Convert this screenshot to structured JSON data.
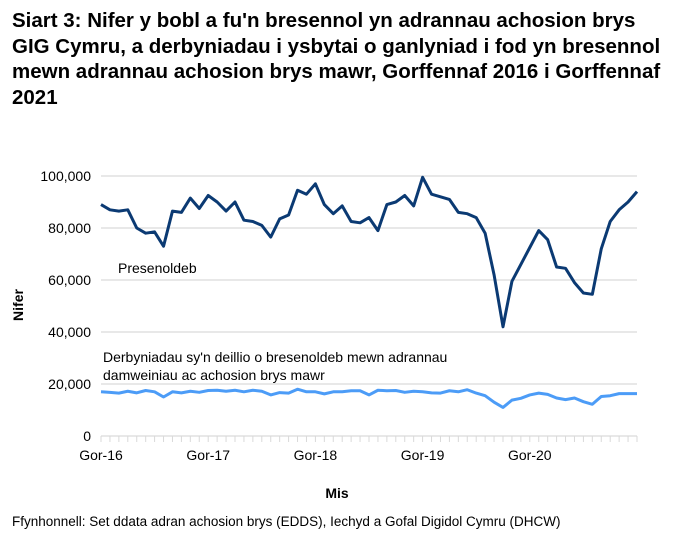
{
  "chart_data": {
    "type": "line",
    "title": "Siart 3: Nifer y bobl a fu'n bresennol yn adrannau achosion brys GIG Cymru, a derbyniadau i ysbytai o ganlyniad i fod yn bresennol mewn adrannau achosion brys mawr, Gorffennaf 2016 i Gorffennaf 2021",
    "xlabel": "Mis",
    "ylabel": "Nifer",
    "ylim": [
      0,
      100000
    ],
    "yticks": [
      "0",
      "20,000",
      "40,000",
      "60,000",
      "80,000",
      "100,000"
    ],
    "xticks": [
      "Gor-16",
      "Gor-17",
      "Gor-18",
      "Gor-19",
      "Gor-20"
    ],
    "x_start": "2016-07",
    "x_end": "2021-07",
    "x_interval": "monthly",
    "grid": true,
    "series": [
      {
        "name": "Presenoldeb",
        "color": "#0b3a73",
        "values": [
          89000,
          87000,
          86500,
          87000,
          80000,
          78000,
          78500,
          73000,
          86500,
          86000,
          91500,
          87500,
          92500,
          90000,
          86500,
          90000,
          83000,
          82500,
          81000,
          76500,
          83500,
          85000,
          94500,
          93000,
          97000,
          89000,
          85500,
          88500,
          82500,
          82000,
          84000,
          79000,
          89000,
          90000,
          92500,
          88500,
          99500,
          93000,
          92000,
          91000,
          86000,
          85500,
          84000,
          78000,
          62000,
          42000,
          59500,
          66000,
          72500,
          79000,
          75500,
          65000,
          64500,
          59000,
          55000,
          54500,
          72000,
          82500,
          87000,
          90000,
          94000
        ]
      },
      {
        "name": "Derbyniadau sy'n deillio o bresenoldeb mewn adrannau damweiniau ac achosion brys mawr",
        "color": "#4c9cf7",
        "values": [
          17000,
          16800,
          16500,
          17200,
          16600,
          17500,
          17000,
          15000,
          17000,
          16600,
          17200,
          16800,
          17500,
          17600,
          17200,
          17600,
          17000,
          17600,
          17200,
          15800,
          16700,
          16500,
          18000,
          17000,
          17000,
          16200,
          17000,
          17000,
          17400,
          17400,
          15800,
          17600,
          17400,
          17500,
          16800,
          17200,
          17000,
          16600,
          16500,
          17400,
          17000,
          17800,
          16500,
          15500,
          13000,
          11000,
          13800,
          14500,
          15800,
          16500,
          16000,
          14600,
          14000,
          14600,
          13200,
          12200,
          15200,
          15500,
          16300,
          16300,
          16300
        ]
      }
    ],
    "annotations": [
      "Presenoldeb",
      "Derbyniadau sy'n deillio o bresenoldeb mewn adrannau",
      "damweiniau ac achosion brys mawr"
    ],
    "source": "Ffynhonnell: Set ddata adran achosion brys (EDDS), Iechyd a Gofal Digidol Cymru (DHCW)"
  }
}
